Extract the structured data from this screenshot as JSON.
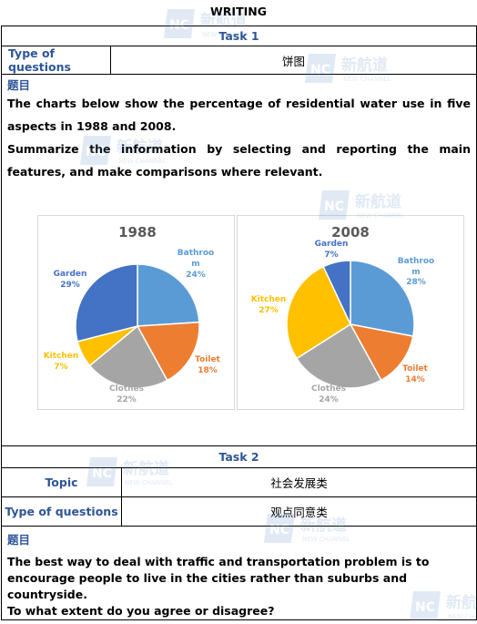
{
  "page_title": "WRITING",
  "task1": {
    "header": "Task 1",
    "type_label": "Type of questions",
    "type_value": "饼图",
    "question_label": "题目",
    "question_line1": "The charts below show the percentage of residential water use in five aspects in 1988 and 2008.",
    "question_line2": "Summarize the information by selecting and reporting the main features, and make comparisons where relevant."
  },
  "chart_data": [
    {
      "type": "pie",
      "title": "1988",
      "categories": [
        "Bathroom",
        "Toilet",
        "Clothes",
        "Kitchen",
        "Garden"
      ],
      "values": [
        24,
        18,
        22,
        7,
        29
      ],
      "labels": [
        "Bathroo m",
        "Toilet",
        "Clothes",
        "Kitchen",
        "Garden"
      ],
      "value_labels": [
        "24%",
        "18%",
        "22%",
        "7%",
        "29%"
      ],
      "colors": [
        "#5b9bd5",
        "#ed7d31",
        "#a5a5a5",
        "#ffc000",
        "#4472c4"
      ]
    },
    {
      "type": "pie",
      "title": "2008",
      "categories": [
        "Bathroom",
        "Toilet",
        "Clothes",
        "Kitchen",
        "Garden"
      ],
      "values": [
        28,
        14,
        24,
        27,
        7
      ],
      "labels": [
        "Bathroo m",
        "Toilet",
        "Clothes",
        "Kitchen",
        "Garden"
      ],
      "value_labels": [
        "28%",
        "14%",
        "24%",
        "27%",
        "7%"
      ],
      "colors": [
        "#5b9bd5",
        "#ed7d31",
        "#a5a5a5",
        "#ffc000",
        "#4472c4"
      ]
    }
  ],
  "task2": {
    "header": "Task 2",
    "topic_label": "Topic",
    "topic_value": "社会发展类",
    "type_label": "Type of questions",
    "type_value": "观点同意类",
    "question_label": "题目",
    "question_line1": "The best way to deal with traffic and transportation problem is to encourage people to live in the cities rather than suburbs and countryside.",
    "question_line2": "To what extent do you agree or disagree?"
  },
  "watermark": {
    "logo_letters": "NC",
    "brand_cn": "新航道",
    "brand_en": "NEW CHANNEL",
    "color": "#4a7fc1"
  }
}
